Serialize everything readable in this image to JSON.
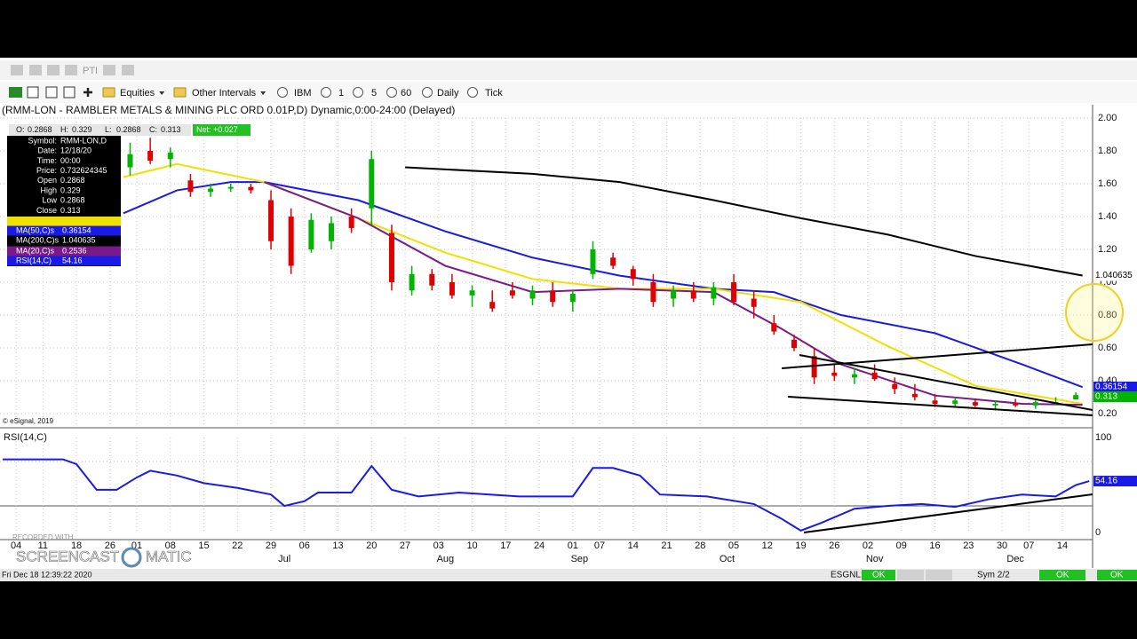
{
  "toolbar": {
    "top_label": "PTI",
    "buttons": [
      "Equities",
      "Other Intervals",
      "IBM",
      "1",
      "5",
      "60",
      "Daily",
      "Tick"
    ]
  },
  "chart_data": [
    {
      "type": "candlestick",
      "title": "(RMM-LON - RAMBLER METALS & MINING PLC ORD 0.01P,D) Dynamic,0:00-24:00 (Delayed)",
      "copyright": "© eSignal, 2019",
      "up_color": "#00b400",
      "down_color": "#e00000",
      "x": [
        17,
        20,
        23,
        26,
        29,
        32,
        35,
        38,
        41,
        44,
        47,
        50,
        53,
        56,
        59,
        62,
        65,
        68,
        71,
        74,
        77,
        80,
        83,
        86,
        89,
        92,
        95,
        98,
        101,
        104,
        107,
        110,
        113,
        116,
        119,
        122,
        125,
        128,
        131,
        134,
        137,
        140,
        143,
        146,
        149,
        152,
        155,
        158
      ],
      "open": [
        1.7,
        1.8,
        1.75,
        1.62,
        1.55,
        1.57,
        1.58,
        1.5,
        1.4,
        1.2,
        1.25,
        1.4,
        1.45,
        1.3,
        0.95,
        1.05,
        1.0,
        0.92,
        0.88,
        0.95,
        0.9,
        0.95,
        0.88,
        1.05,
        1.15,
        1.08,
        1.0,
        0.9,
        0.95,
        0.9,
        1.0,
        0.9,
        0.75,
        0.65,
        0.55,
        0.45,
        0.42,
        0.45,
        0.38,
        0.32,
        0.28,
        0.26,
        0.27,
        0.25,
        0.26,
        0.25,
        0.26,
        0.2868
      ],
      "high": [
        1.85,
        1.88,
        1.82,
        1.66,
        1.6,
        1.6,
        1.6,
        1.56,
        1.45,
        1.42,
        1.4,
        1.45,
        1.8,
        1.35,
        1.1,
        1.08,
        1.05,
        0.98,
        0.95,
        1.0,
        0.98,
        1.0,
        0.95,
        1.25,
        1.18,
        1.1,
        1.05,
        0.98,
        1.0,
        1.0,
        1.05,
        0.95,
        0.8,
        0.68,
        0.6,
        0.5,
        0.48,
        0.5,
        0.42,
        0.38,
        0.32,
        0.3,
        0.29,
        0.28,
        0.29,
        0.28,
        0.3,
        0.329
      ],
      "low": [
        1.65,
        1.72,
        1.7,
        1.52,
        1.52,
        1.55,
        1.54,
        1.2,
        1.05,
        1.18,
        1.2,
        1.3,
        1.35,
        0.95,
        0.92,
        0.95,
        0.9,
        0.85,
        0.82,
        0.9,
        0.86,
        0.85,
        0.82,
        1.02,
        1.08,
        0.98,
        0.85,
        0.85,
        0.88,
        0.86,
        0.86,
        0.78,
        0.68,
        0.58,
        0.38,
        0.4,
        0.38,
        0.4,
        0.32,
        0.28,
        0.24,
        0.24,
        0.24,
        0.22,
        0.24,
        0.23,
        0.25,
        0.2868
      ],
      "close": [
        1.78,
        1.74,
        1.79,
        1.55,
        1.57,
        1.58,
        1.56,
        1.25,
        1.1,
        1.38,
        1.36,
        1.33,
        1.75,
        1.0,
        1.05,
        0.98,
        0.92,
        0.95,
        0.84,
        0.92,
        0.95,
        0.88,
        0.93,
        1.2,
        1.1,
        1.02,
        0.88,
        0.95,
        0.9,
        0.97,
        0.88,
        0.85,
        0.7,
        0.6,
        0.42,
        0.43,
        0.44,
        0.41,
        0.35,
        0.3,
        0.26,
        0.28,
        0.25,
        0.26,
        0.25,
        0.27,
        0.27,
        0.313
      ],
      "series": [
        {
          "name": "MA(50,C)s",
          "color": "#1a1ae6",
          "x": [
            16,
            24,
            32,
            37,
            51,
            64,
            77,
            90,
            104,
            113,
            123,
            137,
            150,
            159
          ],
          "values": [
            1.42,
            1.56,
            1.61,
            1.61,
            1.5,
            1.31,
            1.15,
            1.04,
            0.96,
            0.94,
            0.8,
            0.69,
            0.5,
            0.36154
          ]
        },
        {
          "name": "MA(200,C)s",
          "color": "#000000",
          "x": [
            58,
            77,
            90,
            104,
            117,
            130,
            143,
            159
          ],
          "values": [
            1.7,
            1.66,
            1.61,
            1.5,
            1.39,
            1.29,
            1.16,
            1.040635
          ]
        },
        {
          "color": "#f0e000",
          "x": [
            16,
            24,
            37,
            51,
            64,
            77,
            90,
            104,
            117,
            130,
            143,
            159
          ],
          "values": [
            1.64,
            1.72,
            1.61,
            1.39,
            1.18,
            1.02,
            0.96,
            0.96,
            0.88,
            0.61,
            0.37,
            0.26
          ]
        },
        {
          "name": "MA(20,C)s",
          "color": "#7a1a8a",
          "x": [
            37,
            51,
            64,
            77,
            90,
            104,
            114,
            123,
            137,
            150,
            159
          ],
          "values": [
            1.61,
            1.39,
            1.1,
            0.94,
            0.96,
            0.94,
            0.72,
            0.5,
            0.31,
            0.26,
            0.2536
          ]
        }
      ],
      "xlim": [
        -2.4,
        160.5
      ],
      "xticks": [
        {
          "value": 0,
          "label": "04"
        },
        {
          "value": 4,
          "label": "11"
        },
        {
          "value": 9,
          "label": "18"
        },
        {
          "value": 14,
          "label": "26"
        },
        {
          "value": 18,
          "label": "01"
        },
        {
          "value": 23,
          "label": "08"
        },
        {
          "value": 28,
          "label": "15"
        },
        {
          "value": 33,
          "label": "22"
        },
        {
          "value": 38,
          "label": "29"
        },
        {
          "value": 43,
          "label": "06"
        },
        {
          "value": 48,
          "label": "13"
        },
        {
          "value": 53,
          "label": "20"
        },
        {
          "value": 58,
          "label": "27"
        },
        {
          "value": 63,
          "label": "03"
        },
        {
          "value": 68,
          "label": "10"
        },
        {
          "value": 73,
          "label": "17"
        },
        {
          "value": 78,
          "label": "24"
        },
        {
          "value": 83,
          "label": "01"
        },
        {
          "value": 87,
          "label": "07"
        },
        {
          "value": 92,
          "label": "14"
        },
        {
          "value": 97,
          "label": "21"
        },
        {
          "value": 102,
          "label": "28"
        },
        {
          "value": 107,
          "label": "05"
        },
        {
          "value": 112,
          "label": "12"
        },
        {
          "value": 117,
          "label": "19"
        },
        {
          "value": 122,
          "label": "26"
        },
        {
          "value": 127,
          "label": "02"
        },
        {
          "value": 132,
          "label": "09"
        },
        {
          "value": 137,
          "label": "16"
        },
        {
          "value": 142,
          "label": "23"
        },
        {
          "value": 147,
          "label": "30"
        },
        {
          "value": 151,
          "label": "07"
        },
        {
          "value": 156,
          "label": "14"
        }
      ],
      "month_ticks": [
        {
          "value": 40,
          "label": "Jul"
        },
        {
          "value": 64,
          "label": "Aug"
        },
        {
          "value": 84,
          "label": "Sep"
        },
        {
          "value": 106,
          "label": "Oct"
        },
        {
          "value": 128,
          "label": "Nov"
        },
        {
          "value": 149,
          "label": "Dec"
        }
      ],
      "ylim": [
        0.13,
        2.0
      ],
      "yticks": [
        {
          "value": 0.2,
          "label": "0.20"
        },
        {
          "value": 0.4,
          "label": "0.40"
        },
        {
          "value": 0.6,
          "label": "0.60"
        },
        {
          "value": 0.8,
          "label": "0.80"
        },
        {
          "value": 1,
          "label": "1.00"
        },
        {
          "value": 1.2,
          "label": "1.20"
        },
        {
          "value": 1.4,
          "label": "1.40"
        },
        {
          "value": 1.6,
          "label": "1.60"
        },
        {
          "value": 1.8,
          "label": "1.80"
        },
        {
          "value": 2,
          "label": "2.00"
        }
      ],
      "grid": true
    },
    {
      "type": "line",
      "title": "RSI(14,C)",
      "series": [
        {
          "name": "RSI(14,C)",
          "color": "#1a1ae6",
          "x": [
            -2,
            3,
            7,
            9,
            12,
            15,
            18,
            20,
            24,
            28,
            33,
            38,
            40,
            43,
            45,
            50,
            53,
            56,
            60,
            66,
            75,
            83,
            86,
            89,
            93,
            96,
            103,
            110,
            114,
            117,
            120,
            125,
            130,
            135,
            140,
            145,
            150,
            155,
            158,
            160
          ],
          "values": [
            77,
            77,
            77,
            72,
            45,
            45,
            58,
            65,
            60,
            52,
            47,
            40,
            28,
            33,
            42,
            42,
            70,
            45,
            38,
            42,
            38,
            38,
            68,
            68,
            60,
            40,
            38,
            30,
            15,
            2,
            10,
            25,
            28,
            30,
            27,
            35,
            40,
            38,
            50,
            54.16
          ]
        }
      ],
      "xlim": [
        -2.4,
        160.5
      ],
      "ylim": [
        0,
        100
      ],
      "yticks": [
        0,
        100
      ],
      "grid": true
    }
  ],
  "info_panel": {
    "ohlc": [
      "O:",
      "H:",
      "L:",
      "C:"
    ],
    "net": "Net: +0.027",
    "rows": [
      [
        "Symbol:",
        "RMM-LON,D"
      ],
      [
        "Date:",
        "12/18/20"
      ],
      [
        "Time:",
        "00:00"
      ],
      [
        "Price:",
        "0.732624345"
      ],
      [
        "Open",
        "0.2868"
      ],
      [
        "High",
        "0.329"
      ],
      [
        "Low",
        "0.2868"
      ],
      [
        "Close",
        "0.313"
      ]
    ]
  },
  "status_bar": {
    "clock": "Fri Dec 18 12:39:22 2020",
    "feed": "ESGNL:",
    "feed_status": "OK",
    "symbols": "Sym 2/2",
    "status_a": "OK",
    "status_b": "OK"
  },
  "watermark": {
    "small": "RECORDED WITH",
    "left": "SCREENCAST",
    "right": "MATIC"
  }
}
